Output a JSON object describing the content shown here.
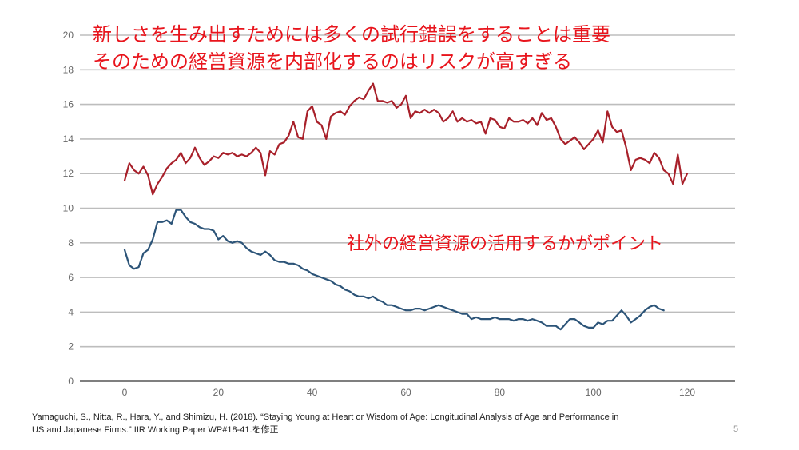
{
  "headline": {
    "line1": "新しさを生み出すためには多くの試行錯誤をすることは重要",
    "line2": "そのための経営資源を内部化するのはリスクが高すぎる"
  },
  "annotation": "社外の経営資源の活用するかがポイント",
  "citation": {
    "line1": "Yamaguchi, S., Nitta, R., Hara, Y., and Shimizu, H. (2018). “Staying Young at Heart or Wisdom of Age: Longitudinal Analysis of Age and Performance in",
    "line2": "US and Japanese Firms.” IIR Working Paper WP#18-41.を修正"
  },
  "page_number": "5",
  "colors": {
    "upper_series": "#a8202a",
    "lower_series": "#2c5478",
    "text_red": "#e8141c"
  },
  "chart_data": {
    "type": "line",
    "xlim": [
      0,
      120
    ],
    "ylim": [
      0,
      20
    ],
    "x_ticks": [
      0,
      20,
      40,
      60,
      80,
      100,
      120
    ],
    "y_ticks": [
      0,
      2,
      4,
      6,
      8,
      10,
      12,
      14,
      16,
      18,
      20
    ],
    "grid": "horizontal",
    "series": [
      {
        "points": [
          [
            0,
            11.6
          ],
          [
            1,
            12.6
          ],
          [
            2,
            12.2
          ],
          [
            3,
            12.0
          ],
          [
            4,
            12.4
          ],
          [
            5,
            11.9
          ],
          [
            6,
            10.8
          ],
          [
            7,
            11.4
          ],
          [
            8,
            11.8
          ],
          [
            9,
            12.3
          ],
          [
            10,
            12.6
          ],
          [
            11,
            12.8
          ],
          [
            12,
            13.2
          ],
          [
            13,
            12.6
          ],
          [
            14,
            12.9
          ],
          [
            15,
            13.5
          ],
          [
            16,
            12.9
          ],
          [
            17,
            12.5
          ],
          [
            18,
            12.7
          ],
          [
            19,
            13.0
          ],
          [
            20,
            12.9
          ],
          [
            21,
            13.2
          ],
          [
            22,
            13.1
          ],
          [
            23,
            13.2
          ],
          [
            24,
            13.0
          ],
          [
            25,
            13.1
          ],
          [
            26,
            13.0
          ],
          [
            27,
            13.2
          ],
          [
            28,
            13.5
          ],
          [
            29,
            13.2
          ],
          [
            30,
            11.9
          ],
          [
            31,
            13.3
          ],
          [
            32,
            13.1
          ],
          [
            33,
            13.7
          ],
          [
            34,
            13.8
          ],
          [
            35,
            14.2
          ],
          [
            36,
            15.0
          ],
          [
            37,
            14.1
          ],
          [
            38,
            14.0
          ],
          [
            39,
            15.6
          ],
          [
            40,
            15.9
          ],
          [
            41,
            15.0
          ],
          [
            42,
            14.8
          ],
          [
            43,
            14.0
          ],
          [
            44,
            15.3
          ],
          [
            45,
            15.5
          ],
          [
            46,
            15.6
          ],
          [
            47,
            15.4
          ],
          [
            48,
            15.9
          ],
          [
            49,
            16.2
          ],
          [
            50,
            16.4
          ],
          [
            51,
            16.3
          ],
          [
            52,
            16.8
          ],
          [
            53,
            17.2
          ],
          [
            54,
            16.2
          ],
          [
            55,
            16.2
          ],
          [
            56,
            16.1
          ],
          [
            57,
            16.2
          ],
          [
            58,
            15.8
          ],
          [
            59,
            16.0
          ],
          [
            60,
            16.5
          ],
          [
            61,
            15.2
          ],
          [
            62,
            15.6
          ],
          [
            63,
            15.5
          ],
          [
            64,
            15.7
          ],
          [
            65,
            15.5
          ],
          [
            66,
            15.7
          ],
          [
            67,
            15.5
          ],
          [
            68,
            15.0
          ],
          [
            69,
            15.2
          ],
          [
            70,
            15.6
          ],
          [
            71,
            15.0
          ],
          [
            72,
            15.2
          ],
          [
            73,
            15.0
          ],
          [
            74,
            15.1
          ],
          [
            75,
            14.9
          ],
          [
            76,
            15.0
          ],
          [
            77,
            14.3
          ],
          [
            78,
            15.2
          ],
          [
            79,
            15.1
          ],
          [
            80,
            14.7
          ],
          [
            81,
            14.6
          ],
          [
            82,
            15.2
          ],
          [
            83,
            15.0
          ],
          [
            84,
            15.0
          ],
          [
            85,
            15.1
          ],
          [
            86,
            14.9
          ],
          [
            87,
            15.2
          ],
          [
            88,
            14.8
          ],
          [
            89,
            15.5
          ],
          [
            90,
            15.1
          ],
          [
            91,
            15.2
          ],
          [
            92,
            14.7
          ],
          [
            93,
            14.0
          ],
          [
            94,
            13.7
          ],
          [
            95,
            13.9
          ],
          [
            96,
            14.1
          ],
          [
            97,
            13.8
          ],
          [
            98,
            13.4
          ],
          [
            99,
            13.7
          ],
          [
            100,
            14.0
          ],
          [
            101,
            14.5
          ],
          [
            102,
            13.8
          ],
          [
            103,
            15.6
          ],
          [
            104,
            14.7
          ],
          [
            105,
            14.4
          ],
          [
            106,
            14.5
          ],
          [
            107,
            13.5
          ],
          [
            108,
            12.2
          ],
          [
            109,
            12.8
          ],
          [
            110,
            12.9
          ],
          [
            111,
            12.8
          ],
          [
            112,
            12.6
          ],
          [
            113,
            13.2
          ],
          [
            114,
            12.9
          ],
          [
            115,
            12.2
          ],
          [
            116,
            12.0
          ],
          [
            117,
            11.4
          ],
          [
            118,
            13.1
          ],
          [
            119,
            11.4
          ],
          [
            120,
            12.0
          ]
        ]
      },
      {
        "points": [
          [
            0,
            7.6
          ],
          [
            1,
            6.7
          ],
          [
            2,
            6.5
          ],
          [
            3,
            6.6
          ],
          [
            4,
            7.4
          ],
          [
            5,
            7.6
          ],
          [
            6,
            8.2
          ],
          [
            7,
            9.2
          ],
          [
            8,
            9.2
          ],
          [
            9,
            9.3
          ],
          [
            10,
            9.1
          ],
          [
            11,
            9.9
          ],
          [
            12,
            9.9
          ],
          [
            13,
            9.5
          ],
          [
            14,
            9.2
          ],
          [
            15,
            9.1
          ],
          [
            16,
            8.9
          ],
          [
            17,
            8.8
          ],
          [
            18,
            8.8
          ],
          [
            19,
            8.7
          ],
          [
            20,
            8.2
          ],
          [
            21,
            8.4
          ],
          [
            22,
            8.1
          ],
          [
            23,
            8.0
          ],
          [
            24,
            8.1
          ],
          [
            25,
            8.0
          ],
          [
            26,
            7.7
          ],
          [
            27,
            7.5
          ],
          [
            28,
            7.4
          ],
          [
            29,
            7.3
          ],
          [
            30,
            7.5
          ],
          [
            31,
            7.3
          ],
          [
            32,
            7.0
          ],
          [
            33,
            6.9
          ],
          [
            34,
            6.9
          ],
          [
            35,
            6.8
          ],
          [
            36,
            6.8
          ],
          [
            37,
            6.7
          ],
          [
            38,
            6.5
          ],
          [
            39,
            6.4
          ],
          [
            40,
            6.2
          ],
          [
            41,
            6.1
          ],
          [
            42,
            6.0
          ],
          [
            43,
            5.9
          ],
          [
            44,
            5.8
          ],
          [
            45,
            5.6
          ],
          [
            46,
            5.5
          ],
          [
            47,
            5.3
          ],
          [
            48,
            5.2
          ],
          [
            49,
            5.0
          ],
          [
            50,
            4.9
          ],
          [
            51,
            4.9
          ],
          [
            52,
            4.8
          ],
          [
            53,
            4.9
          ],
          [
            54,
            4.7
          ],
          [
            55,
            4.6
          ],
          [
            56,
            4.4
          ],
          [
            57,
            4.4
          ],
          [
            58,
            4.3
          ],
          [
            59,
            4.2
          ],
          [
            60,
            4.1
          ],
          [
            61,
            4.1
          ],
          [
            62,
            4.2
          ],
          [
            63,
            4.2
          ],
          [
            64,
            4.1
          ],
          [
            65,
            4.2
          ],
          [
            66,
            4.3
          ],
          [
            67,
            4.4
          ],
          [
            68,
            4.3
          ],
          [
            69,
            4.2
          ],
          [
            70,
            4.1
          ],
          [
            71,
            4.0
          ],
          [
            72,
            3.9
          ],
          [
            73,
            3.9
          ],
          [
            74,
            3.6
          ],
          [
            75,
            3.7
          ],
          [
            76,
            3.6
          ],
          [
            77,
            3.6
          ],
          [
            78,
            3.6
          ],
          [
            79,
            3.7
          ],
          [
            80,
            3.6
          ],
          [
            81,
            3.6
          ],
          [
            82,
            3.6
          ],
          [
            83,
            3.5
          ],
          [
            84,
            3.6
          ],
          [
            85,
            3.6
          ],
          [
            86,
            3.5
          ],
          [
            87,
            3.6
          ],
          [
            88,
            3.5
          ],
          [
            89,
            3.4
          ],
          [
            90,
            3.2
          ],
          [
            91,
            3.2
          ],
          [
            92,
            3.2
          ],
          [
            93,
            3.0
          ],
          [
            94,
            3.3
          ],
          [
            95,
            3.6
          ],
          [
            96,
            3.6
          ],
          [
            97,
            3.4
          ],
          [
            98,
            3.2
          ],
          [
            99,
            3.1
          ],
          [
            100,
            3.1
          ],
          [
            101,
            3.4
          ],
          [
            102,
            3.3
          ],
          [
            103,
            3.5
          ],
          [
            104,
            3.5
          ],
          [
            105,
            3.8
          ],
          [
            106,
            4.1
          ],
          [
            107,
            3.8
          ],
          [
            108,
            3.4
          ],
          [
            109,
            3.6
          ],
          [
            110,
            3.8
          ],
          [
            111,
            4.1
          ],
          [
            112,
            4.3
          ],
          [
            113,
            4.4
          ],
          [
            114,
            4.2
          ],
          [
            115,
            4.1
          ]
        ]
      }
    ]
  }
}
